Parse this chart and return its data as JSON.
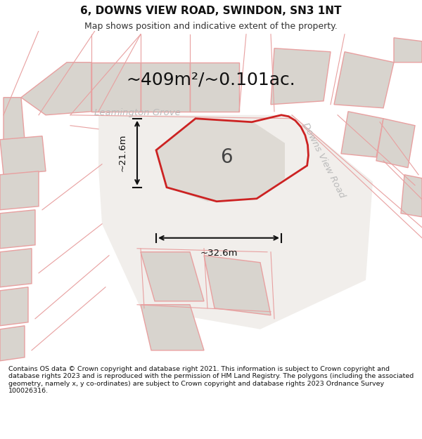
{
  "title": "6, DOWNS VIEW ROAD, SWINDON, SN3 1NT",
  "subtitle": "Map shows position and indicative extent of the property.",
  "area_text": "~409m²/~0.101ac.",
  "plot_number": "6",
  "dim_width": "~32.6m",
  "dim_height": "~21.6m",
  "street_label1": "Leamington Grove",
  "street_label2": "Downs View Road",
  "footer": "Contains OS data © Crown copyright and database right 2021. This information is subject to Crown copyright and database rights 2023 and is reproduced with the permission of HM Land Registry. The polygons (including the associated geometry, namely x, y co-ordinates) are subject to Crown copyright and database rights 2023 Ordnance Survey 100026316.",
  "bg_color": "#ffffff",
  "map_bg": "#ffffff",
  "plot_fill": "#e0dbd4",
  "plot_outline": "#cc2222",
  "road_line_color": "#e8a0a0",
  "plot_fill2": "#d8d4ce",
  "dim_line_color": "#111111",
  "title_fontsize": 11,
  "subtitle_fontsize": 9,
  "area_fontsize": 18,
  "plot_label_fontsize": 20,
  "street_fontsize": 9.5,
  "footer_fontsize": 6.8
}
